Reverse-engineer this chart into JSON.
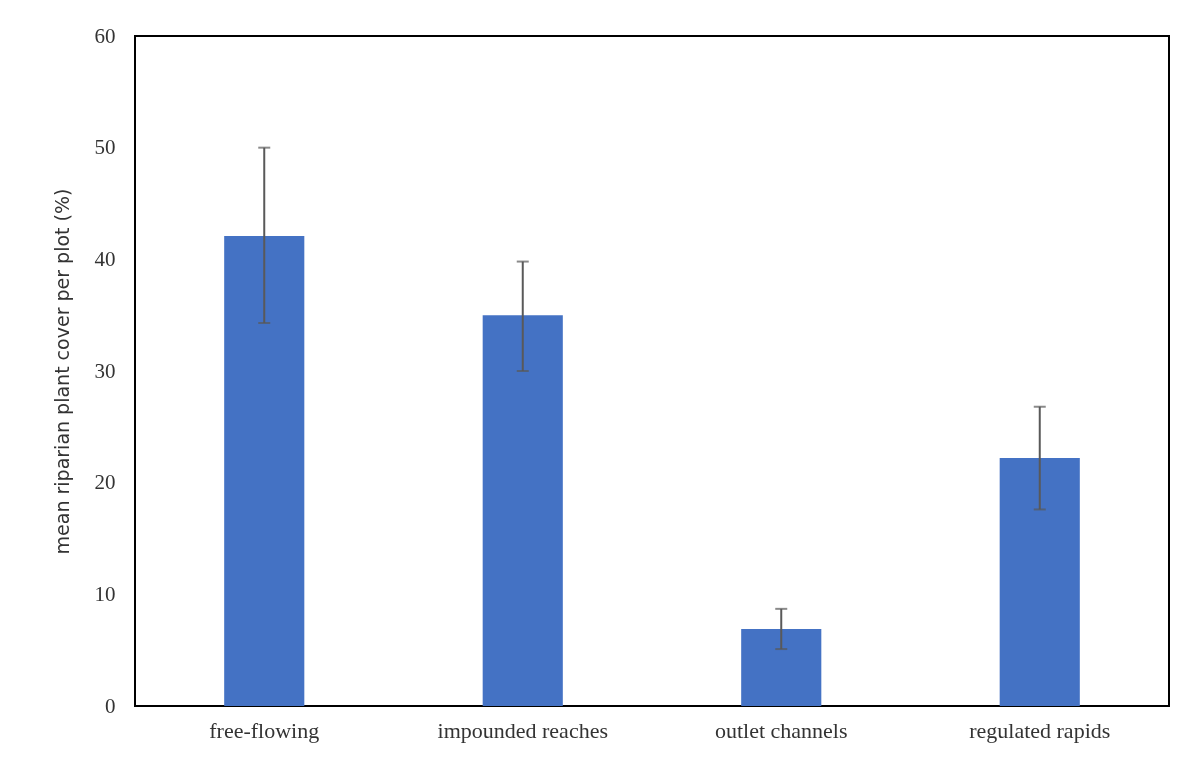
{
  "chart_data": {
    "type": "bar",
    "ylabel": "mean riparian plant cover per plot (%)",
    "categories": [
      "free-flowing",
      "impounded reaches",
      "outlet channels",
      "regulated rapids"
    ],
    "values": [
      42.1,
      35,
      6.9,
      22.2
    ],
    "color": "#4472c4",
    "errors": [
      [
        34.3,
        50
      ],
      [
        30,
        39.8
      ],
      [
        5.1,
        8.7
      ],
      [
        17.6,
        26.8
      ]
    ],
    "ylim": [
      0,
      60
    ],
    "yticks": [
      0,
      10,
      20,
      30,
      40,
      50,
      60
    ],
    "grid": false
  }
}
